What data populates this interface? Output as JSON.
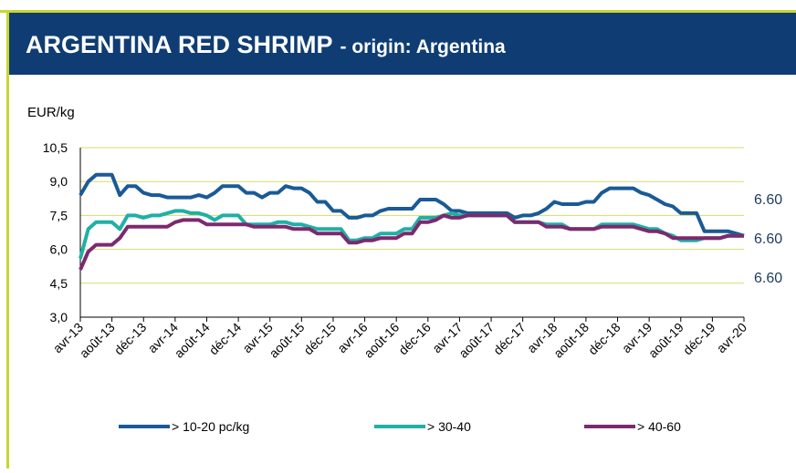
{
  "header": {
    "title": "ARGENTINA RED SHRIMP",
    "subtitle": "- origin: Argentina"
  },
  "chart_data": {
    "type": "line",
    "ylabel": "EUR/kg",
    "categories": [
      "avr-13",
      null,
      null,
      null,
      "août-13",
      null,
      null,
      null,
      "déc-13",
      null,
      null,
      null,
      "avr-14",
      null,
      null,
      null,
      "août-14",
      null,
      null,
      null,
      "déc-14",
      null,
      null,
      null,
      "avr-15",
      null,
      null,
      null,
      "août-15",
      null,
      null,
      null,
      "déc-15",
      null,
      null,
      null,
      "avr-16",
      null,
      null,
      null,
      "août-16",
      null,
      null,
      null,
      "déc-16",
      null,
      null,
      null,
      "avr-17",
      null,
      null,
      null,
      "août-17",
      null,
      null,
      null,
      "déc-17",
      null,
      null,
      null,
      "avr-18",
      null,
      null,
      null,
      "août-18",
      null,
      null,
      null,
      "déc-18",
      null,
      null,
      null,
      "avr-19",
      null,
      null,
      null,
      "août-19",
      null,
      null,
      null,
      "déc-19",
      null,
      null,
      null,
      "avr-20"
    ],
    "series": [
      {
        "name": "> 10-20 pc/kg",
        "color": "#1a5a96",
        "values": [
          8.4,
          9.0,
          9.3,
          9.3,
          9.3,
          8.4,
          8.8,
          8.8,
          8.5,
          8.4,
          8.4,
          8.3,
          8.3,
          8.3,
          8.3,
          8.4,
          8.3,
          8.5,
          8.8,
          8.8,
          8.8,
          8.5,
          8.5,
          8.3,
          8.5,
          8.5,
          8.8,
          8.7,
          8.7,
          8.5,
          8.1,
          8.1,
          7.7,
          7.7,
          7.4,
          7.4,
          7.5,
          7.5,
          7.7,
          7.8,
          7.8,
          7.8,
          7.8,
          8.2,
          8.2,
          8.2,
          8.0,
          7.7,
          7.7,
          7.6,
          7.6,
          7.6,
          7.6,
          7.6,
          7.6,
          7.4,
          7.5,
          7.5,
          7.6,
          7.8,
          8.1,
          8.0,
          8.0,
          8.0,
          8.1,
          8.1,
          8.5,
          8.7,
          8.7,
          8.7,
          8.7,
          8.5,
          8.4,
          8.2,
          8.0,
          7.9,
          7.6,
          7.6,
          7.6,
          6.8,
          6.8,
          6.8,
          6.8,
          6.7,
          6.6
        ]
      },
      {
        "name": "> 30-40",
        "color": "#1fb0a6",
        "values": [
          5.6,
          6.9,
          7.2,
          7.2,
          7.2,
          6.9,
          7.5,
          7.5,
          7.4,
          7.5,
          7.5,
          7.6,
          7.7,
          7.7,
          7.6,
          7.6,
          7.5,
          7.3,
          7.5,
          7.5,
          7.5,
          7.1,
          7.1,
          7.1,
          7.1,
          7.2,
          7.2,
          7.1,
          7.1,
          7.0,
          6.9,
          6.9,
          6.9,
          6.9,
          6.4,
          6.4,
          6.5,
          6.5,
          6.7,
          6.7,
          6.7,
          6.9,
          6.9,
          7.4,
          7.4,
          7.4,
          7.5,
          7.6,
          7.5,
          7.5,
          7.5,
          7.5,
          7.5,
          7.5,
          7.5,
          7.2,
          7.2,
          7.2,
          7.2,
          7.1,
          7.1,
          7.1,
          6.9,
          6.9,
          6.9,
          6.9,
          7.1,
          7.1,
          7.1,
          7.1,
          7.1,
          7.0,
          6.9,
          6.9,
          6.7,
          6.6,
          6.4,
          6.4,
          6.4,
          6.5,
          6.5,
          6.5,
          6.6,
          6.6,
          6.6
        ]
      },
      {
        "name": "> 40-60",
        "color": "#7b2a6e",
        "values": [
          5.1,
          5.9,
          6.2,
          6.2,
          6.2,
          6.5,
          7.0,
          7.0,
          7.0,
          7.0,
          7.0,
          7.0,
          7.2,
          7.3,
          7.3,
          7.3,
          7.1,
          7.1,
          7.1,
          7.1,
          7.1,
          7.1,
          7.0,
          7.0,
          7.0,
          7.0,
          7.0,
          6.9,
          6.9,
          6.9,
          6.7,
          6.7,
          6.7,
          6.7,
          6.3,
          6.3,
          6.4,
          6.4,
          6.5,
          6.5,
          6.5,
          6.7,
          6.7,
          7.2,
          7.2,
          7.3,
          7.5,
          7.4,
          7.4,
          7.5,
          7.5,
          7.5,
          7.5,
          7.5,
          7.5,
          7.2,
          7.2,
          7.2,
          7.2,
          7.0,
          7.0,
          7.0,
          6.9,
          6.9,
          6.9,
          6.9,
          7.0,
          7.0,
          7.0,
          7.0,
          7.0,
          6.9,
          6.8,
          6.8,
          6.7,
          6.5,
          6.5,
          6.5,
          6.5,
          6.5,
          6.5,
          6.5,
          6.6,
          6.6,
          6.6
        ]
      }
    ],
    "ylim": [
      3,
      10.5
    ],
    "yticks": [
      {
        "value": 3,
        "label": "3,0"
      },
      {
        "value": 4.5,
        "label": "4,5"
      },
      {
        "value": 6,
        "label": "6,0"
      },
      {
        "value": 7.5,
        "label": "7,5"
      },
      {
        "value": 9,
        "label": "9,0"
      },
      {
        "value": 10.5,
        "label": "10,5"
      }
    ],
    "grid": true,
    "legend": "bottom",
    "annotations": [
      "6.60",
      "6.60",
      "6.60"
    ]
  }
}
